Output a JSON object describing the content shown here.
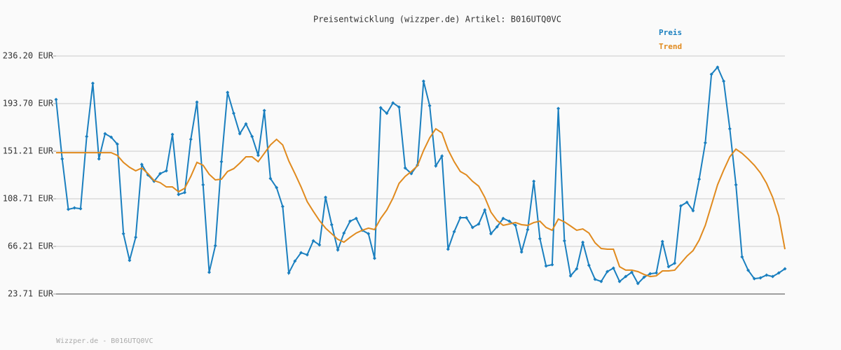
{
  "chart_data": {
    "type": "line",
    "title": "Preisentwicklung (wizzper.de) Artikel: B016UTQ0VC",
    "footer": "Wizzper.de - B016UTQ0VC",
    "ylim": [
      23.71,
      236.2
    ],
    "yticks": [
      {
        "value": 23.71,
        "label": "23.71 EUR"
      },
      {
        "value": 66.21,
        "label": "66.21 EUR"
      },
      {
        "value": 108.71,
        "label": "108.71 EUR"
      },
      {
        "value": 151.21,
        "label": "151.21 EUR"
      },
      {
        "value": 193.7,
        "label": "193.70 EUR"
      },
      {
        "value": 236.2,
        "label": "236.20 EUR"
      }
    ],
    "grid": true,
    "legend": "top-right",
    "series": [
      {
        "name": "Preis",
        "color": "#1a7fbf",
        "markers": true,
        "values": [
          197.4,
          144.3,
          99.3,
          100.6,
          99.9,
          164.3,
          211.8,
          144.3,
          166.8,
          163.7,
          157.5,
          77.5,
          53.7,
          74.3,
          139.3,
          130,
          124.3,
          131.2,
          133.7,
          166.2,
          112.5,
          114.3,
          161.8,
          195,
          121.2,
          43.1,
          66.8,
          141.8,
          203.7,
          185,
          166.8,
          175.6,
          164.3,
          147.5,
          187.5,
          126.8,
          118.7,
          101.8,
          42.5,
          53.1,
          60.6,
          58.7,
          71.2,
          67.5,
          110,
          85.6,
          63.1,
          78.1,
          88.7,
          91.2,
          80.6,
          77.5,
          55.6,
          190,
          185,
          194.3,
          190.6,
          136.2,
          131.2,
          138.7,
          213.7,
          191.8,
          138.1,
          146.8,
          63.7,
          79.3,
          91.8,
          91.8,
          83.1,
          86.2,
          98.7,
          77.5,
          83.7,
          91.2,
          88.7,
          85,
          61.2,
          81.2,
          124.3,
          73.1,
          48.7,
          49.9,
          189.3,
          71.2,
          39.9,
          46.2,
          69.9,
          49.3,
          36.8,
          34.9,
          43.7,
          46.8,
          34.9,
          39.3,
          43.1,
          33.1,
          38.7,
          41.8,
          42.5,
          70.6,
          48.1,
          51.2,
          102.4,
          105.6,
          98.1,
          126.2,
          158.7,
          219.9,
          226.2,
          213.7,
          171.2,
          121.2,
          56.8,
          44.9,
          37.4,
          38.1,
          40.6,
          39.3,
          42.5,
          46.2
        ]
      },
      {
        "name": "Trend",
        "color": "#e08a1e",
        "markers": false,
        "values": [
          149.9,
          149.9,
          149.9,
          149.9,
          149.9,
          149.9,
          149.9,
          149.9,
          149.9,
          149.9,
          147.5,
          141.2,
          136.8,
          133.7,
          136.2,
          131.2,
          125,
          123.1,
          119.3,
          119.3,
          115,
          118.1,
          128.7,
          141.2,
          138.7,
          130.6,
          125.6,
          126.2,
          133.1,
          135.6,
          140.6,
          146.2,
          146.2,
          141.8,
          149.3,
          156.8,
          161.8,
          156.8,
          142.5,
          131.2,
          119.3,
          106.2,
          97.5,
          89.3,
          82.5,
          77.5,
          72.5,
          70,
          74.3,
          78.1,
          80.6,
          82.5,
          81.2,
          91.2,
          98.7,
          109.3,
          122.5,
          128.7,
          133.1,
          138.1,
          151.8,
          163.1,
          171.2,
          167.5,
          152.5,
          141.8,
          133.1,
          130,
          124.3,
          120,
          110,
          96.8,
          89.3,
          85,
          86.2,
          87.5,
          85.6,
          85,
          87.5,
          88.7,
          83.1,
          80.6,
          90.6,
          88.1,
          84.4,
          80.6,
          81.8,
          78.1,
          69.4,
          64.3,
          63.7,
          63.7,
          48.1,
          45,
          45,
          43.7,
          41.2,
          39.3,
          39.9,
          44.3,
          44.3,
          45,
          51.2,
          57.5,
          62.5,
          71.8,
          85,
          103.1,
          121.2,
          134.3,
          146.2,
          153.1,
          149.3,
          144.3,
          138.7,
          131.8,
          122.5,
          110,
          93.1,
          63.7
        ]
      }
    ]
  }
}
